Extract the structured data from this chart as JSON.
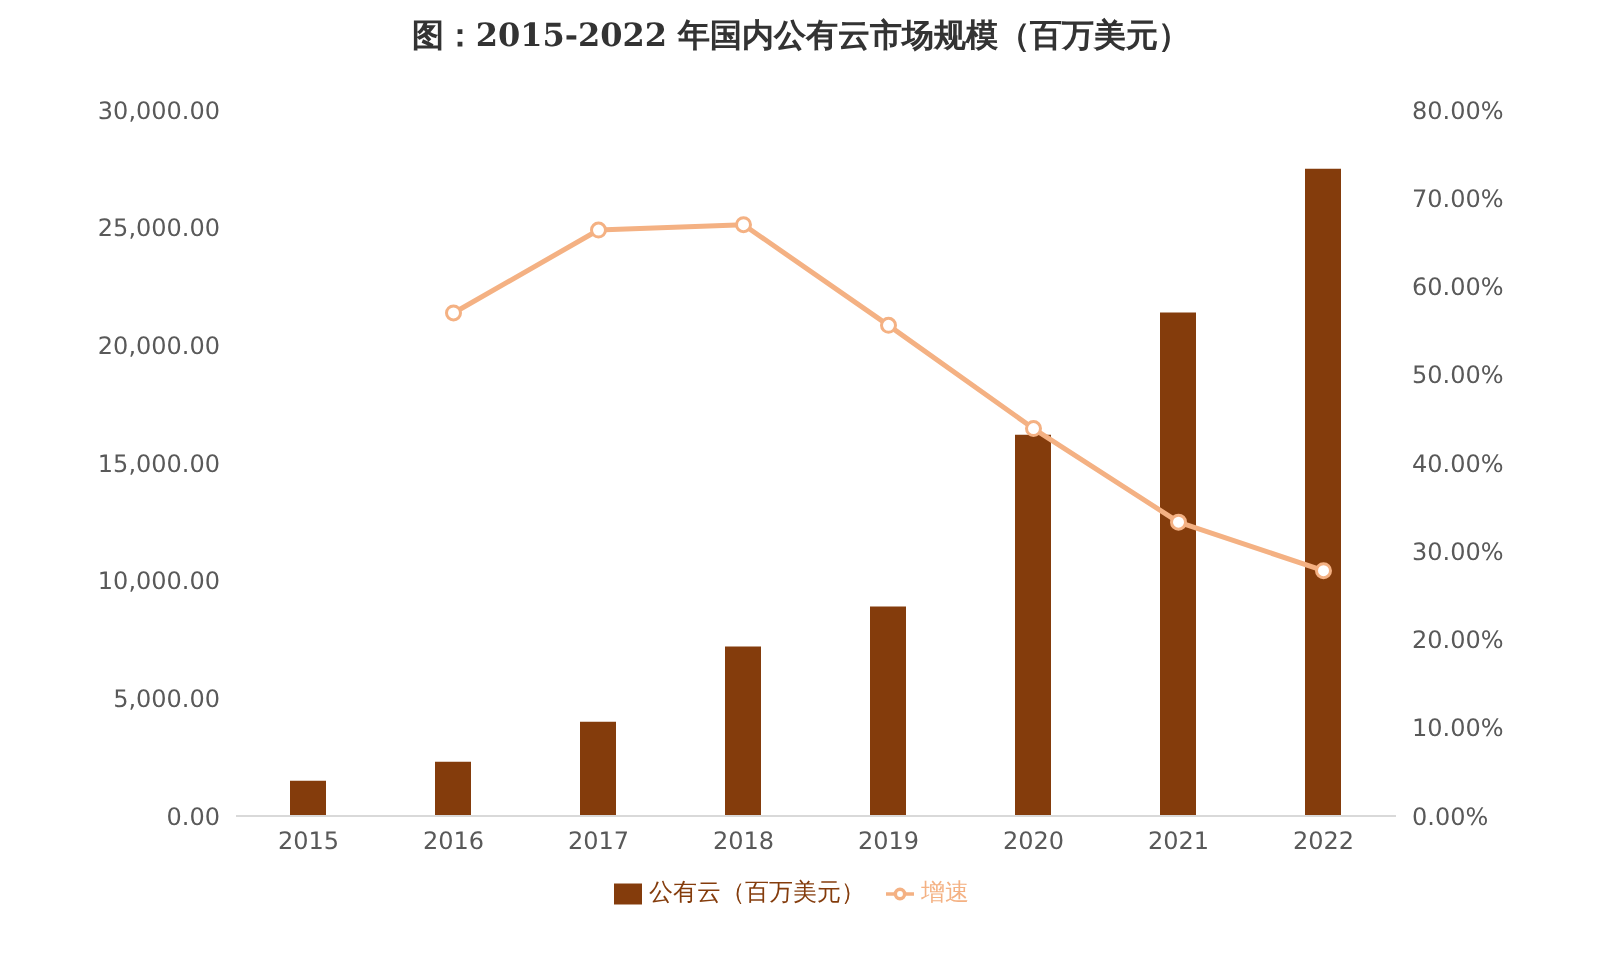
{
  "chart_data": {
    "type": "bar",
    "title": "图：2015-2022 年国内公有云市场规模（百万美元）",
    "categories": [
      "2015",
      "2016",
      "2017",
      "2018",
      "2019",
      "2020",
      "2021",
      "2022"
    ],
    "series": [
      {
        "name": "公有云（百万美元）",
        "color": "#843c0c",
        "values": [
          1500,
          2300,
          4000,
          7200,
          8900,
          16200,
          21400,
          27500
        ]
      },
      {
        "name": "增速",
        "type": "line",
        "axis": "y2",
        "color": "#f4b183",
        "values": [
          null,
          57,
          66.4,
          67,
          55.6,
          43.9,
          33.3,
          27.8
        ]
      }
    ],
    "ylim": [
      0,
      30000
    ],
    "yticks": [
      {
        "value": 0,
        "label": "0.00"
      },
      {
        "value": 5000,
        "label": "5,000.00"
      },
      {
        "value": 10000,
        "label": "10,000.00"
      },
      {
        "value": 15000,
        "label": "15,000.00"
      },
      {
        "value": 20000,
        "label": "20,000.00"
      },
      {
        "value": 25000,
        "label": "25,000.00"
      },
      {
        "value": 30000,
        "label": "30,000.00"
      }
    ],
    "y2lim": [
      0,
      80
    ],
    "y2ticks": [
      {
        "value": 0,
        "label": "0.00%"
      },
      {
        "value": 10,
        "label": "10.00%"
      },
      {
        "value": 20,
        "label": "20.00%"
      },
      {
        "value": 30,
        "label": "30.00%"
      },
      {
        "value": 40,
        "label": "40.00%"
      },
      {
        "value": 50,
        "label": "50.00%"
      },
      {
        "value": 60,
        "label": "60.00%"
      },
      {
        "value": 70,
        "label": "70.00%"
      },
      {
        "value": 80,
        "label": "80.00%"
      }
    ],
    "grid": false,
    "legend": "bottom",
    "marker": "circle"
  }
}
